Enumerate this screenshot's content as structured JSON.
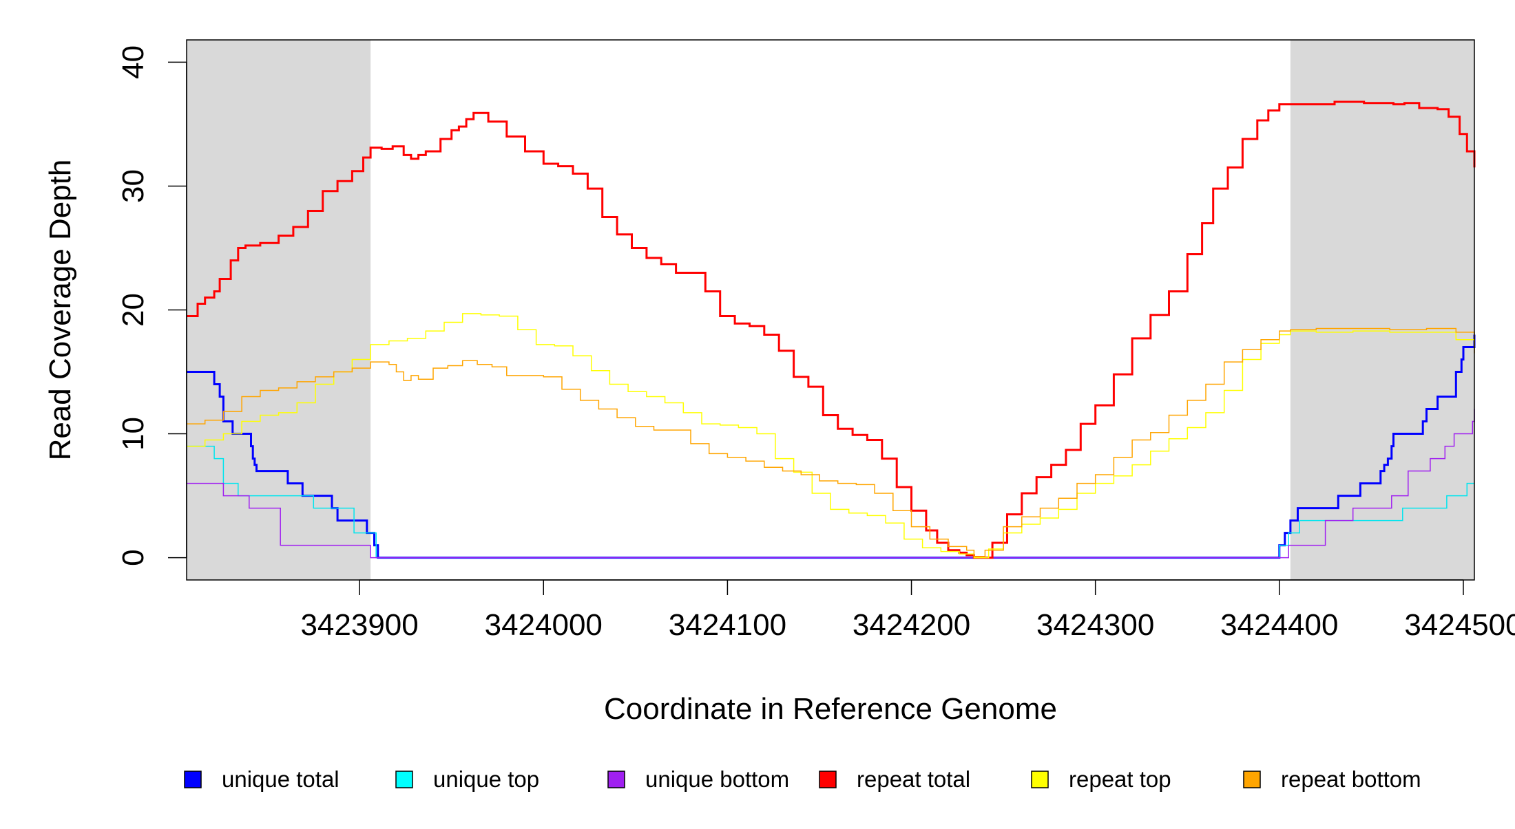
{
  "chart_data": {
    "type": "line",
    "step": true,
    "xlabel": "Coordinate in Reference Genome",
    "ylabel": "Read Coverage Depth",
    "xlim": [
      3423806,
      3424506
    ],
    "ylim": [
      -1.8,
      41.8
    ],
    "x_ticks": [
      3423900,
      3424000,
      3424100,
      3424200,
      3424300,
      3424400,
      3424500
    ],
    "x_tick_labels": [
      "3423900",
      "3424000",
      "3424100",
      "3424200",
      "3424300",
      "3424400",
      "3424500"
    ],
    "y_ticks": [
      0,
      10,
      20,
      30,
      40
    ],
    "y_tick_labels": [
      "0",
      "10",
      "20",
      "30",
      "40"
    ],
    "grid": false,
    "legend_position": "bottom",
    "shaded_regions": [
      {
        "x_start": 3423806,
        "x_end": 3423906,
        "color": "#d9d9d9"
      },
      {
        "x_start": 3424406,
        "x_end": 3424506,
        "color": "#d9d9d9"
      }
    ],
    "series": [
      {
        "name": "unique total",
        "color": "#0000ff",
        "line_width": 3,
        "x": [
          3423806,
          3423821,
          3423824,
          3423826,
          3423831,
          3423841,
          3423842,
          3423843,
          3423844,
          3423846,
          3423861,
          3423869,
          3423885,
          3423888,
          3423893,
          3423904,
          3423908,
          3423910,
          3424400,
          3424403,
          3424406,
          3424410,
          3424425,
          3424432,
          3424444,
          3424455,
          3424457,
          3424459,
          3424461,
          3424462,
          3424478,
          3424480,
          3424486,
          3424496,
          3424497,
          3424499,
          3424500,
          3424506
        ],
        "y": [
          15,
          14,
          13,
          11,
          10,
          9,
          8,
          7.5,
          7,
          7,
          6,
          5,
          4,
          3,
          3,
          2,
          1,
          0,
          1,
          2,
          3,
          4,
          4,
          5,
          6,
          7,
          7.5,
          8,
          9,
          10,
          11,
          12,
          13,
          15,
          15,
          16,
          17,
          18
        ]
      },
      {
        "name": "unique top",
        "color": "#00e5ee",
        "line_width": 1.5,
        "x": [
          3423806,
          3423821,
          3423826,
          3423834,
          3423840,
          3423860,
          3423875,
          3423882,
          3423897,
          3423906,
          3423909,
          3424400,
          3424402,
          3424405,
          3424408,
          3424411,
          3424423,
          3424467,
          3424491,
          3424502,
          3424506
        ],
        "y": [
          9,
          8,
          6,
          5,
          5,
          5,
          4,
          4,
          2,
          2,
          0,
          1,
          1,
          2,
          2,
          3,
          3,
          4,
          5,
          6,
          6
        ],
        "legend_color": "#00ffff"
      },
      {
        "name": "unique bottom",
        "color": "#a020f0",
        "line_width": 1.5,
        "x": [
          3423806,
          3423824,
          3423826,
          3423836,
          3423840,
          3423857,
          3423903,
          3423906,
          3424405,
          3424425,
          3424440,
          3424461,
          3424470,
          3424482,
          3424490,
          3424495,
          3424505,
          3424506
        ],
        "y": [
          6,
          6,
          5,
          5,
          4,
          1,
          1,
          0,
          1,
          3,
          4,
          5,
          7,
          8,
          9,
          10,
          11,
          12
        ]
      },
      {
        "name": "repeat total",
        "color": "#ff0000",
        "line_width": 3,
        "x": [
          3423806,
          3423812,
          3423816,
          3423821,
          3423824,
          3423830,
          3423834,
          3423838,
          3423846,
          3423856,
          3423864,
          3423872,
          3423880,
          3423888,
          3423896,
          3423902,
          3423906,
          3423912,
          3423918,
          3423924,
          3423928,
          3423932,
          3423936,
          3423944,
          3423950,
          3423954,
          3423958,
          3423962,
          3423970,
          3423980,
          3423990,
          3424000,
          3424008,
          3424016,
          3424024,
          3424032,
          3424040,
          3424048,
          3424056,
          3424064,
          3424072,
          3424080,
          3424088,
          3424096,
          3424104,
          3424112,
          3424120,
          3424128,
          3424136,
          3424144,
          3424152,
          3424160,
          3424168,
          3424176,
          3424184,
          3424192,
          3424200,
          3424208,
          3424214,
          3424220,
          3424226,
          3424230,
          3424234,
          3424238,
          3424244,
          3424252,
          3424260,
          3424268,
          3424276,
          3424284,
          3424292,
          3424300,
          3424310,
          3424320,
          3424330,
          3424340,
          3424350,
          3424358,
          3424364,
          3424372,
          3424380,
          3424388,
          3424394,
          3424400,
          3424406,
          3424418,
          3424430,
          3424446,
          3424462,
          3424468,
          3424476,
          3424486,
          3424492,
          3424498,
          3424502,
          3424506
        ],
        "y": [
          19.5,
          20.5,
          21,
          21.5,
          22.5,
          24,
          25,
          25.2,
          25.4,
          26,
          26.7,
          28,
          29.6,
          30.4,
          31.2,
          32.3,
          33.1,
          33,
          33.2,
          32.5,
          32.2,
          32.5,
          32.8,
          33.8,
          34.5,
          34.8,
          35.4,
          35.9,
          35.2,
          34,
          32.8,
          31.8,
          31.6,
          31,
          29.8,
          27.5,
          26.1,
          25,
          24.2,
          23.7,
          23,
          23,
          21.5,
          19.5,
          18.9,
          18.7,
          18,
          16.7,
          14.6,
          13.8,
          11.5,
          10.4,
          9.9,
          9.5,
          8,
          5.7,
          3.8,
          2.2,
          1.2,
          0.6,
          0.4,
          0.2,
          0,
          0,
          1.2,
          3.5,
          5.2,
          6.5,
          7.5,
          8.7,
          10.8,
          12.3,
          14.8,
          17.7,
          19.6,
          21.5,
          24.5,
          27,
          29.8,
          31.5,
          33.8,
          35.3,
          36.1,
          36.6,
          36.6,
          36.6,
          36.8,
          36.7,
          36.6,
          36.7,
          36.3,
          36.2,
          35.6,
          34.2,
          32.8,
          31.5
        ]
      },
      {
        "name": "repeat top",
        "color": "#ffff00",
        "line_width": 1.5,
        "x": [
          3423806,
          3423816,
          3423826,
          3423836,
          3423846,
          3423856,
          3423866,
          3423876,
          3423886,
          3423896,
          3423906,
          3423916,
          3423926,
          3423936,
          3423946,
          3423956,
          3423966,
          3423976,
          3423986,
          3423996,
          3424006,
          3424016,
          3424026,
          3424036,
          3424046,
          3424056,
          3424066,
          3424076,
          3424086,
          3424096,
          3424106,
          3424116,
          3424126,
          3424136,
          3424146,
          3424156,
          3424166,
          3424176,
          3424186,
          3424196,
          3424206,
          3424216,
          3424226,
          3424234,
          3424242,
          3424250,
          3424260,
          3424270,
          3424280,
          3424290,
          3424300,
          3424310,
          3424320,
          3424330,
          3424340,
          3424350,
          3424360,
          3424370,
          3424380,
          3424390,
          3424400,
          3424406,
          3424420,
          3424440,
          3424460,
          3424480,
          3424496,
          3424506
        ],
        "y": [
          9,
          9.5,
          10,
          11,
          11.5,
          11.7,
          12.5,
          14,
          15,
          16,
          17.2,
          17.5,
          17.7,
          18.3,
          19,
          19.7,
          19.6,
          19.5,
          18.4,
          17.2,
          17.1,
          16.3,
          15.1,
          14,
          13.4,
          13,
          12.5,
          11.7,
          10.8,
          10.7,
          10.5,
          10,
          8,
          6.9,
          5.2,
          3.9,
          3.6,
          3.4,
          2.8,
          1.5,
          0.8,
          0.5,
          0.3,
          0,
          0.7,
          2,
          2.7,
          3.2,
          3.9,
          5.2,
          6,
          6.6,
          7.5,
          8.6,
          9.6,
          10.5,
          11.7,
          13.5,
          16,
          17.3,
          18,
          18.3,
          18.2,
          18.3,
          18.2,
          18.2,
          17.6,
          17
        ]
      },
      {
        "name": "repeat bottom",
        "color": "#ffa500",
        "line_width": 1.5,
        "x": [
          3423806,
          3423816,
          3423826,
          3423836,
          3423846,
          3423856,
          3423866,
          3423876,
          3423886,
          3423896,
          3423906,
          3423916,
          3423920,
          3423924,
          3423928,
          3423932,
          3423940,
          3423948,
          3423956,
          3423964,
          3423972,
          3423980,
          3423990,
          3424000,
          3424010,
          3424020,
          3424030,
          3424040,
          3424050,
          3424060,
          3424070,
          3424080,
          3424090,
          3424100,
          3424110,
          3424120,
          3424130,
          3424140,
          3424150,
          3424160,
          3424170,
          3424180,
          3424190,
          3424200,
          3424210,
          3424220,
          3424230,
          3424234,
          3424240,
          3424250,
          3424260,
          3424270,
          3424280,
          3424290,
          3424300,
          3424310,
          3424320,
          3424330,
          3424340,
          3424350,
          3424360,
          3424370,
          3424380,
          3424390,
          3424400,
          3424406,
          3424420,
          3424440,
          3424460,
          3424480,
          3424496,
          3424506
        ],
        "y": [
          10.8,
          11.1,
          11.8,
          13,
          13.5,
          13.7,
          14.2,
          14.6,
          15,
          15.3,
          15.8,
          15.6,
          15,
          14.3,
          14.7,
          14.4,
          15.3,
          15.5,
          15.9,
          15.6,
          15.4,
          14.7,
          14.7,
          14.6,
          13.6,
          12.7,
          12,
          11.3,
          10.6,
          10.3,
          10.3,
          9.2,
          8.4,
          8.1,
          7.8,
          7.3,
          7,
          6.7,
          6.2,
          6,
          5.9,
          5.2,
          3.8,
          2.5,
          1.5,
          0.9,
          0.6,
          0.1,
          0.6,
          2.5,
          3.3,
          4,
          4.8,
          6,
          6.7,
          8.1,
          9.5,
          10.1,
          11.5,
          12.7,
          14,
          15.8,
          16.8,
          17.6,
          18.3,
          18.4,
          18.5,
          18.5,
          18.4,
          18.5,
          18.2,
          16.5
        ]
      }
    ]
  }
}
